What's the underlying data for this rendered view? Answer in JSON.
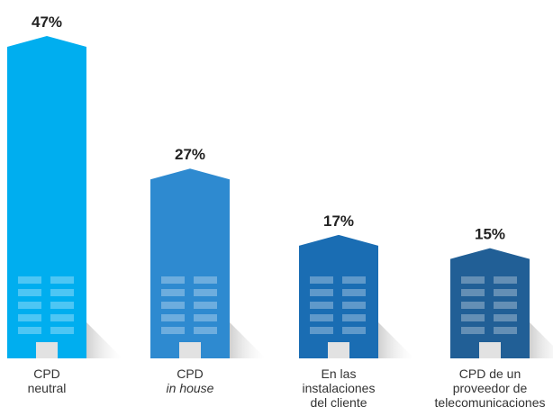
{
  "chart_data": {
    "type": "bar",
    "categories": [
      [
        "CPD",
        "neutral"
      ],
      [
        "CPD",
        "in house"
      ],
      [
        "En las",
        "instalaciones",
        "del cliente"
      ],
      [
        "CPD de un",
        "proveedor de",
        "telecomunicaciones"
      ]
    ],
    "values": [
      47,
      27,
      17,
      15
    ],
    "value_labels": [
      "47%",
      "27%",
      "17%",
      "15%"
    ],
    "colors": [
      "#00aeef",
      "#2e8ad0",
      "#1a6db3",
      "#215f96"
    ]
  }
}
